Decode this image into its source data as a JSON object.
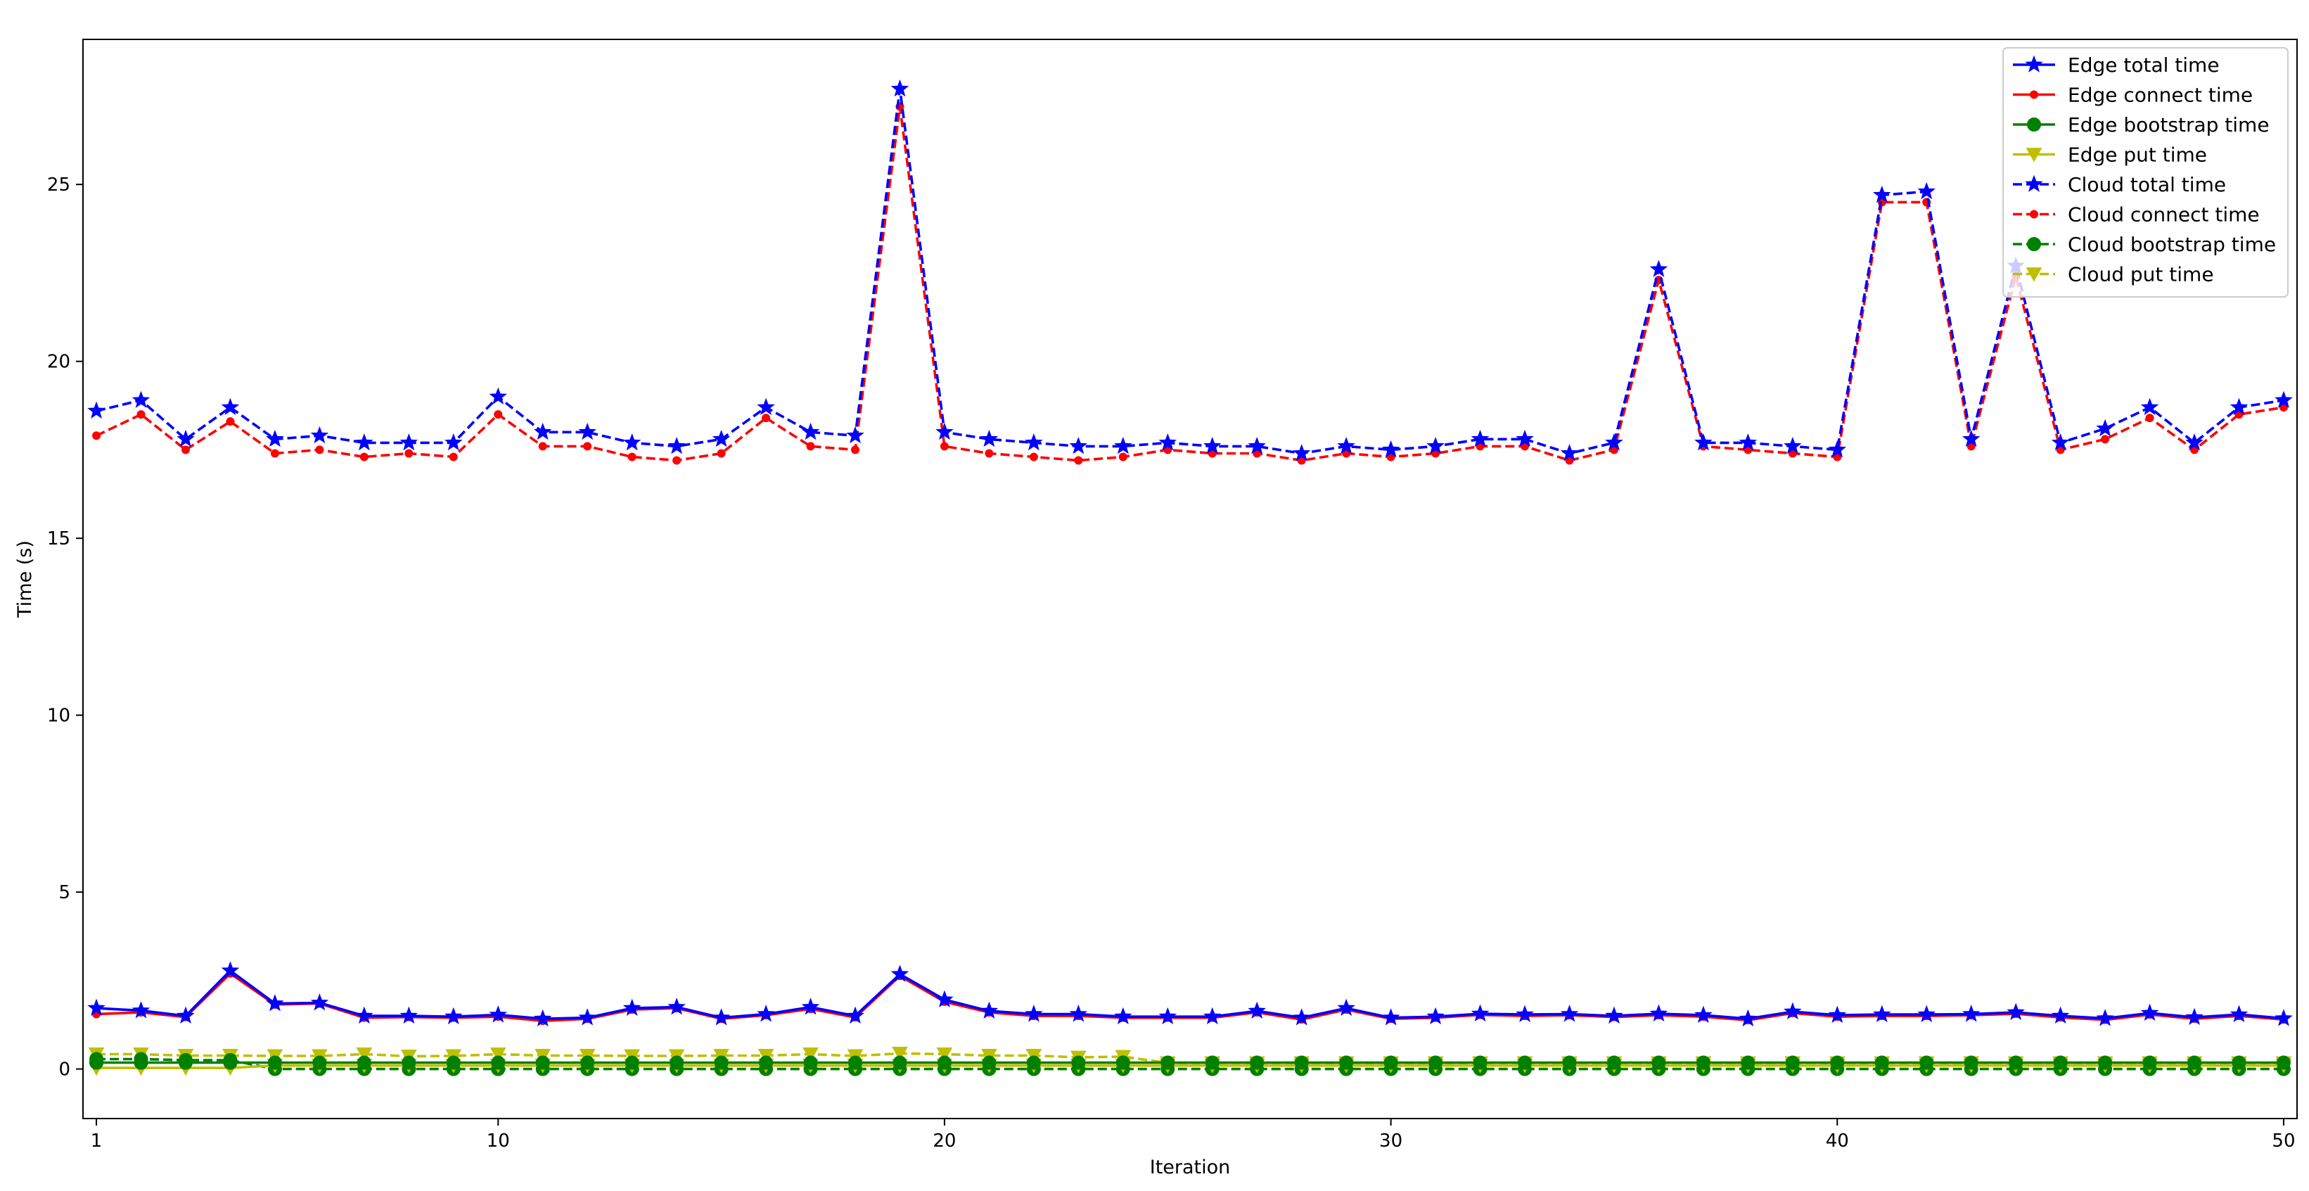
{
  "chart_data": {
    "type": "line",
    "xlabel": "Iteration",
    "ylabel": "Time (s)",
    "xlim": [
      0.7,
      50.3
    ],
    "ylim": [
      -1.4,
      29.1
    ],
    "xticks": [
      1,
      10,
      20,
      30,
      40,
      50
    ],
    "yticks": [
      0,
      5,
      10,
      15,
      20,
      25
    ],
    "grid": false,
    "legend_position": "top-right",
    "x": [
      1,
      2,
      3,
      4,
      5,
      6,
      7,
      8,
      9,
      10,
      11,
      12,
      13,
      14,
      15,
      16,
      17,
      18,
      19,
      20,
      21,
      22,
      23,
      24,
      25,
      26,
      27,
      28,
      29,
      30,
      31,
      32,
      33,
      34,
      35,
      36,
      37,
      38,
      39,
      40,
      41,
      42,
      43,
      44,
      45,
      46,
      47,
      48,
      49,
      50
    ],
    "series": [
      {
        "name": "Edge total time",
        "color": "#0000ff",
        "linestyle": "solid",
        "marker": "star",
        "values": [
          1.72,
          1.65,
          1.5,
          2.78,
          1.85,
          1.87,
          1.5,
          1.5,
          1.48,
          1.53,
          1.42,
          1.45,
          1.72,
          1.75,
          1.45,
          1.55,
          1.75,
          1.5,
          2.68,
          1.96,
          1.64,
          1.55,
          1.55,
          1.48,
          1.48,
          1.48,
          1.64,
          1.45,
          1.72,
          1.45,
          1.48,
          1.56,
          1.54,
          1.55,
          1.5,
          1.56,
          1.52,
          1.42,
          1.62,
          1.52,
          1.54,
          1.54,
          1.55,
          1.6,
          1.5,
          1.43,
          1.58,
          1.46,
          1.54,
          1.43
        ]
      },
      {
        "name": "Edge connect time",
        "color": "#ff0000",
        "linestyle": "solid",
        "marker": "point",
        "values": [
          1.55,
          1.6,
          1.47,
          2.7,
          1.82,
          1.85,
          1.45,
          1.47,
          1.45,
          1.48,
          1.36,
          1.42,
          1.68,
          1.72,
          1.42,
          1.52,
          1.7,
          1.46,
          2.63,
          1.9,
          1.6,
          1.5,
          1.5,
          1.45,
          1.45,
          1.45,
          1.6,
          1.4,
          1.68,
          1.42,
          1.45,
          1.53,
          1.5,
          1.52,
          1.47,
          1.52,
          1.48,
          1.38,
          1.58,
          1.48,
          1.5,
          1.5,
          1.52,
          1.56,
          1.46,
          1.39,
          1.54,
          1.42,
          1.5,
          1.4
        ]
      },
      {
        "name": "Edge bootstrap time",
        "color": "#008000",
        "linestyle": "solid",
        "marker": "circle",
        "values": [
          0.18,
          0.18,
          0.18,
          0.18,
          0.18,
          0.18,
          0.18,
          0.18,
          0.18,
          0.18,
          0.18,
          0.18,
          0.18,
          0.18,
          0.18,
          0.18,
          0.18,
          0.18,
          0.18,
          0.18,
          0.18,
          0.18,
          0.18,
          0.18,
          0.18,
          0.18,
          0.18,
          0.18,
          0.18,
          0.18,
          0.18,
          0.18,
          0.18,
          0.18,
          0.18,
          0.18,
          0.18,
          0.18,
          0.18,
          0.18,
          0.18,
          0.18,
          0.18,
          0.18,
          0.18,
          0.18,
          0.18,
          0.18,
          0.18,
          0.18
        ]
      },
      {
        "name": "Edge put time",
        "color": "#bfbf00",
        "linestyle": "solid",
        "marker": "triangle-down",
        "values": [
          0.03,
          0.03,
          0.03,
          0.03,
          0.1,
          0.1,
          0.1,
          0.1,
          0.1,
          0.1,
          0.1,
          0.1,
          0.1,
          0.1,
          0.1,
          0.1,
          0.1,
          0.1,
          0.1,
          0.1,
          0.1,
          0.1,
          0.1,
          0.1,
          0.1,
          0.1,
          0.1,
          0.1,
          0.1,
          0.1,
          0.1,
          0.1,
          0.1,
          0.1,
          0.1,
          0.1,
          0.1,
          0.1,
          0.1,
          0.1,
          0.1,
          0.1,
          0.1,
          0.1,
          0.1,
          0.1,
          0.1,
          0.1,
          0.1,
          0.1
        ]
      },
      {
        "name": "Cloud total time",
        "color": "#0000ff",
        "linestyle": "dashed",
        "marker": "star",
        "values": [
          18.6,
          18.9,
          17.8,
          18.7,
          17.8,
          17.9,
          17.7,
          17.7,
          17.7,
          19.0,
          18.0,
          18.0,
          17.7,
          17.6,
          17.8,
          18.7,
          18.0,
          17.9,
          27.7,
          18.0,
          17.8,
          17.7,
          17.6,
          17.6,
          17.7,
          17.6,
          17.6,
          17.4,
          17.6,
          17.5,
          17.6,
          17.8,
          17.8,
          17.4,
          17.7,
          22.6,
          17.7,
          17.7,
          17.6,
          17.5,
          24.7,
          24.8,
          17.8,
          22.7,
          17.7,
          18.1,
          18.7,
          17.7,
          18.7,
          18.9
        ]
      },
      {
        "name": "Cloud connect time",
        "color": "#ff0000",
        "linestyle": "dashed",
        "marker": "point",
        "values": [
          17.9,
          18.5,
          17.5,
          18.3,
          17.4,
          17.5,
          17.3,
          17.4,
          17.3,
          18.5,
          17.6,
          17.6,
          17.3,
          17.2,
          17.4,
          18.4,
          17.6,
          17.5,
          27.2,
          17.6,
          17.4,
          17.3,
          17.2,
          17.3,
          17.5,
          17.4,
          17.4,
          17.2,
          17.4,
          17.3,
          17.4,
          17.6,
          17.6,
          17.2,
          17.5,
          22.3,
          17.6,
          17.5,
          17.4,
          17.3,
          24.5,
          24.5,
          17.6,
          22.4,
          17.5,
          17.8,
          18.4,
          17.5,
          18.5,
          18.7
        ]
      },
      {
        "name": "Cloud bootstrap time",
        "color": "#008000",
        "linestyle": "dashed",
        "marker": "circle",
        "values": [
          0.28,
          0.28,
          0.25,
          0.25,
          0.0,
          0.0,
          0.0,
          0.0,
          0.0,
          0.0,
          0.0,
          0.0,
          0.0,
          0.0,
          0.0,
          0.0,
          0.0,
          0.0,
          0.0,
          0.0,
          0.0,
          0.0,
          0.0,
          0.0,
          0.0,
          0.0,
          0.0,
          0.0,
          0.0,
          0.0,
          0.0,
          0.0,
          0.0,
          0.0,
          0.0,
          0.0,
          0.0,
          0.0,
          0.0,
          0.0,
          0.0,
          0.0,
          0.0,
          0.0,
          0.0,
          0.0,
          0.0,
          0.0,
          0.0,
          0.0
        ]
      },
      {
        "name": "Cloud put time",
        "color": "#bfbf00",
        "linestyle": "dashed",
        "marker": "triangle-down",
        "values": [
          0.42,
          0.42,
          0.38,
          0.38,
          0.37,
          0.37,
          0.42,
          0.36,
          0.37,
          0.42,
          0.38,
          0.38,
          0.37,
          0.37,
          0.38,
          0.38,
          0.42,
          0.37,
          0.44,
          0.42,
          0.38,
          0.38,
          0.33,
          0.35,
          0.17,
          0.17,
          0.17,
          0.17,
          0.17,
          0.17,
          0.17,
          0.17,
          0.17,
          0.17,
          0.17,
          0.17,
          0.17,
          0.17,
          0.17,
          0.17,
          0.17,
          0.17,
          0.17,
          0.17,
          0.17,
          0.17,
          0.17,
          0.17,
          0.17,
          0.17
        ]
      }
    ]
  }
}
